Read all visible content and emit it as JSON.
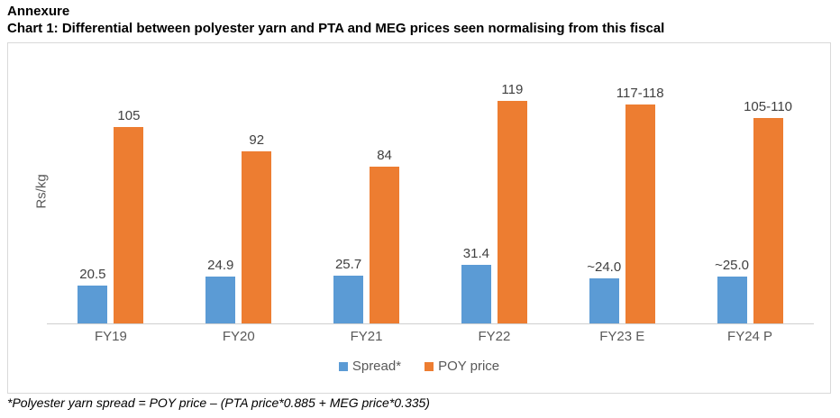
{
  "page": {
    "heading": "Annexure",
    "title": "Chart 1: Differential between polyester yarn and PTA and MEG prices seen normalising from this fiscal",
    "footnote": "*Polyester yarn spread = POY price – (PTA price*0.885 + MEG price*0.335)"
  },
  "chart_data": {
    "type": "bar",
    "title": "Chart 1: Differential between polyester yarn and PTA and MEG prices seen normalising from this fiscal",
    "ylabel": "Rs/kg",
    "xlabel": "",
    "categories": [
      "FY19",
      "FY20",
      "FY21",
      "FY22",
      "FY23 E",
      "FY24 P"
    ],
    "series": [
      {
        "name": "Spread*",
        "color": "#5B9BD5",
        "values": [
          20.5,
          24.9,
          25.7,
          31.4,
          24.0,
          25.0
        ],
        "labels": [
          "20.5",
          "24.9",
          "25.7",
          "31.4",
          "~24.0",
          "~25.0"
        ]
      },
      {
        "name": "POY price",
        "color": "#ED7D31",
        "values": [
          105,
          92,
          84,
          119,
          117.5,
          110
        ],
        "labels": [
          "105",
          "92",
          "84",
          "119",
          "117-118",
          "105-110"
        ]
      }
    ],
    "ylim": [
      0,
      140
    ],
    "grid": false,
    "legend_position": "bottom",
    "axis_line_color": "#d0d0d0",
    "data_label_color": "#404040",
    "tick_label_color": "#595959"
  }
}
